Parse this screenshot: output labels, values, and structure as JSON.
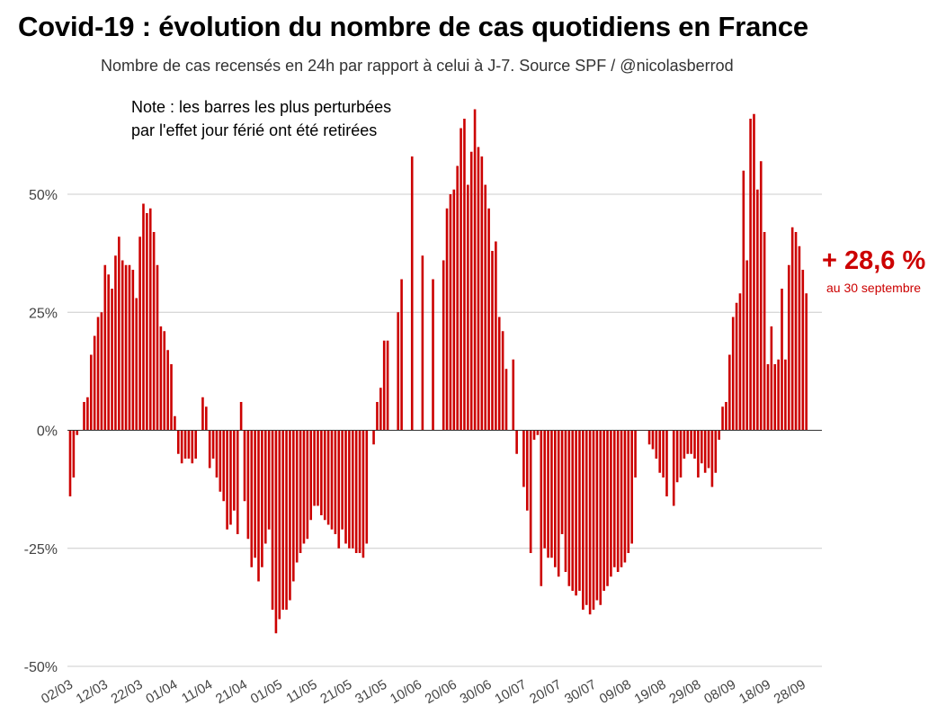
{
  "header": {
    "title": "Covid-19 : évolution du nombre de cas quotidiens en France",
    "subtitle": "Nombre de cas recensés en 24h par rapport à celui à J-7. Source SPF / @nicolasberrod"
  },
  "annotation": {
    "note_line1": "Note : les barres les plus perturbées",
    "note_line2": "par l'effet jour férié ont été retirées",
    "callout_value": "+ 28,6 %",
    "callout_sub": "au 30 septembre"
  },
  "colors": {
    "bar": "#cc0000",
    "grid": "#cccccc",
    "baseline": "#333333",
    "axis_text": "#444444"
  },
  "chart_data": {
    "type": "bar",
    "title": "Covid-19 : évolution du nombre de cas quotidiens en France",
    "xlabel": "",
    "ylabel": "",
    "ylim": [
      -50,
      75
    ],
    "yticks": [
      -50,
      -25,
      0,
      25,
      50
    ],
    "ytick_labels": [
      "-50%",
      "-25%",
      "0%",
      "25%",
      "50%"
    ],
    "grid": true,
    "x_tick_labels": [
      "02/03",
      "12/03",
      "22/03",
      "01/04",
      "11/04",
      "21/04",
      "01/05",
      "11/05",
      "21/05",
      "31/05",
      "10/06",
      "20/06",
      "30/06",
      "10/07",
      "20/07",
      "30/07",
      "09/08",
      "19/08",
      "29/08",
      "08/09",
      "18/09",
      "28/09"
    ],
    "series": [
      {
        "values": [
          -14,
          -10,
          -1,
          0,
          6,
          7,
          16,
          20,
          24,
          25,
          35,
          33,
          30,
          37,
          41,
          36,
          35,
          35,
          34,
          28,
          41,
          48,
          46,
          47,
          42,
          35,
          22,
          21,
          17,
          14,
          3,
          -5,
          -7,
          -6,
          -6,
          -7,
          -6,
          0,
          7,
          5,
          -8,
          -6,
          -10,
          -13,
          -15,
          -21,
          -20,
          -17,
          -22,
          6,
          -15,
          -23,
          -29,
          -27,
          -32,
          -29,
          -24,
          -21,
          -38,
          -43,
          -40,
          -38,
          -38,
          -36,
          -32,
          -28,
          -26,
          -24,
          -23,
          -19,
          -16,
          -16,
          -18,
          -19,
          -20,
          -21,
          -22,
          -25,
          -21,
          -24,
          -25,
          -25,
          -26,
          -26,
          -27,
          -24,
          0,
          -3,
          6,
          9,
          19,
          19,
          null,
          null,
          25,
          32,
          null,
          null,
          58,
          null,
          null,
          37,
          null,
          null,
          32,
          null,
          null,
          36,
          47,
          50,
          51,
          56,
          64,
          66,
          52,
          59,
          68,
          60,
          58,
          52,
          47,
          38,
          40,
          24,
          21,
          13,
          null,
          15,
          -5,
          0,
          -12,
          -17,
          -26,
          -2,
          -1,
          -33,
          -25,
          -27,
          -27,
          -29,
          -31,
          -22,
          -30,
          -33,
          -34,
          -35,
          -34,
          -38,
          -37,
          -39,
          -38,
          -36,
          -37,
          -34,
          -33,
          -31,
          -29,
          -30,
          -29,
          -28,
          -26,
          -24,
          -10,
          null,
          null,
          null,
          -3,
          -4,
          -6,
          -9,
          -10,
          -14,
          null,
          -16,
          -11,
          -10,
          -6,
          -5,
          -5,
          -6,
          -10,
          -7,
          -9,
          -8,
          -12,
          -9,
          -2,
          5,
          6,
          16,
          24,
          27,
          29,
          55,
          36,
          66,
          67,
          51,
          57,
          42,
          14,
          22,
          14,
          15,
          30,
          15,
          35,
          43,
          42,
          39,
          34,
          29
        ]
      }
    ]
  }
}
